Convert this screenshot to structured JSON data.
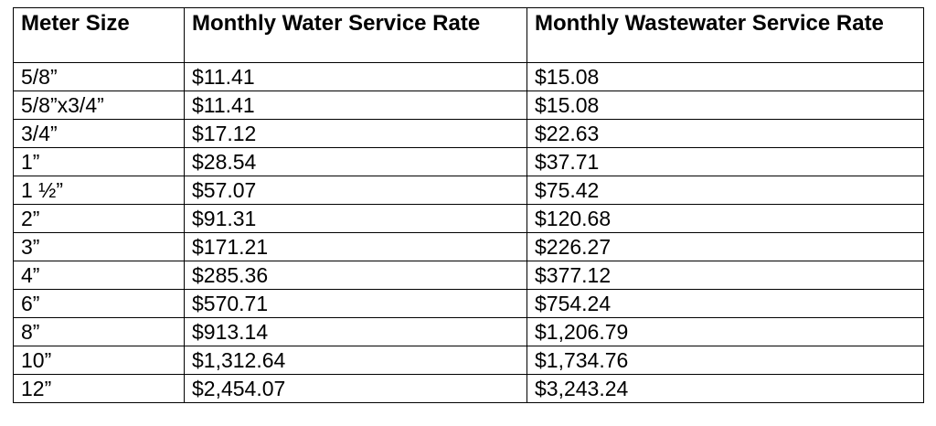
{
  "table": {
    "headers": [
      "Meter Size",
      "Monthly Water Service Rate",
      "Monthly Wastewater Service Rate"
    ],
    "rows": [
      [
        "5/8”",
        "$11.41",
        "$15.08"
      ],
      [
        "5/8”x3/4”",
        "$11.41",
        "$15.08"
      ],
      [
        "3/4”",
        "$17.12",
        "$22.63"
      ],
      [
        "1”",
        "$28.54",
        "$37.71"
      ],
      [
        "1 ½”",
        "$57.07",
        "$75.42"
      ],
      [
        "2”",
        "$91.31",
        "$120.68"
      ],
      [
        "3”",
        "$171.21",
        "$226.27"
      ],
      [
        "4”",
        "$285.36",
        "$377.12"
      ],
      [
        "6”",
        "$570.71",
        "$754.24"
      ],
      [
        "8”",
        "$913.14",
        "$1,206.79"
      ],
      [
        "10”",
        "$1,312.64",
        "$1,734.76"
      ],
      [
        "12”",
        "$2,454.07",
        "$3,243.24"
      ]
    ]
  }
}
